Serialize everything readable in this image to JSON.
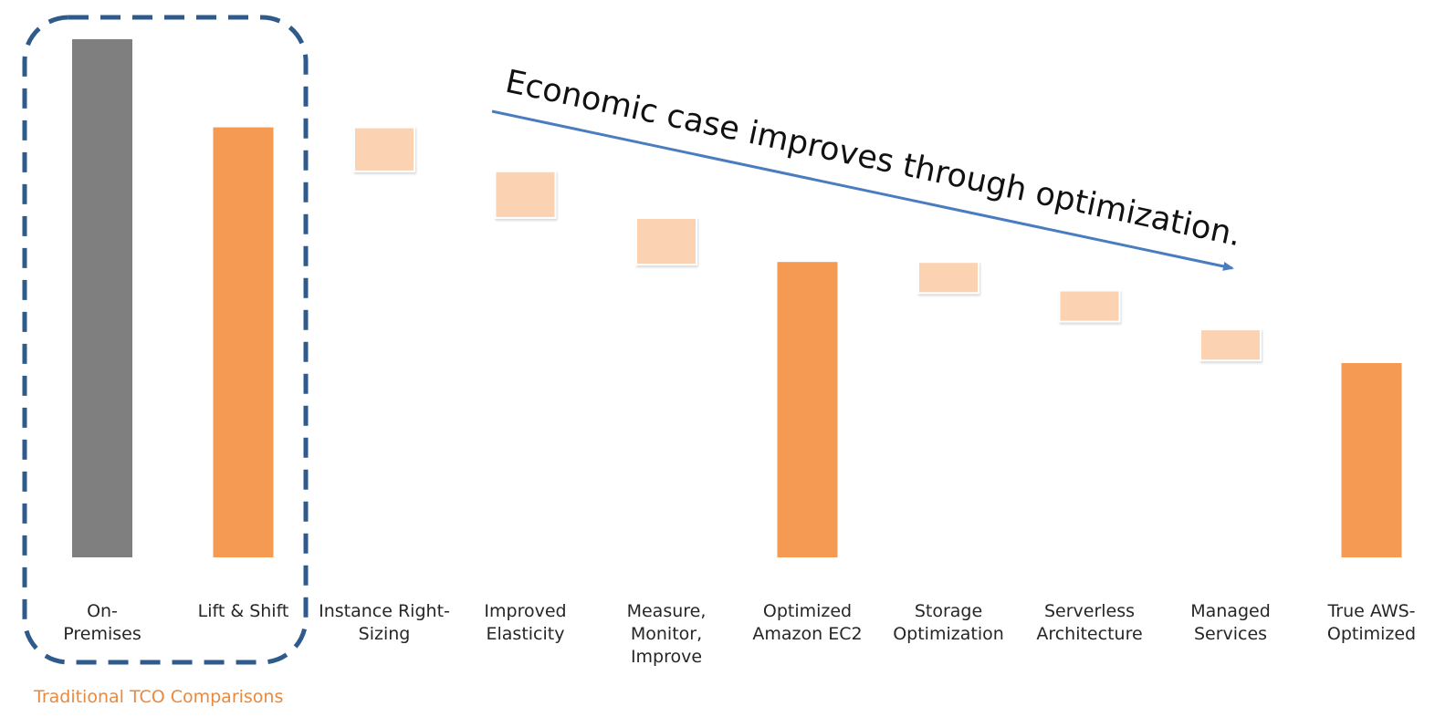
{
  "chart_data": {
    "type": "bar",
    "subtype": "waterfall",
    "categories": [
      [
        "On-",
        "Premises"
      ],
      [
        "Lift & Shift"
      ],
      [
        "Instance Right-",
        "Sizing"
      ],
      [
        "Improved",
        "Elasticity"
      ],
      [
        "Measure,",
        "Monitor,",
        "Improve"
      ],
      [
        "Optimized",
        "Amazon EC2"
      ],
      [
        "Storage",
        "Optimization"
      ],
      [
        "Serverless",
        "Architecture"
      ],
      [
        "Managed",
        "Services"
      ],
      [
        "True AWS-",
        "Optimized"
      ]
    ],
    "bars": [
      {
        "kind": "total",
        "low": 0,
        "high": 100,
        "color": "#7f7f7f"
      },
      {
        "kind": "total",
        "low": 0,
        "high": 83,
        "color": "#f59a52"
      },
      {
        "kind": "step",
        "low": 74.5,
        "high": 83,
        "color": "#fbd2b2"
      },
      {
        "kind": "step",
        "low": 65.5,
        "high": 74.5,
        "color": "#fbd2b2"
      },
      {
        "kind": "step",
        "low": 56.5,
        "high": 65.5,
        "color": "#fbd2b2"
      },
      {
        "kind": "total",
        "low": 0,
        "high": 57,
        "color": "#f59a52"
      },
      {
        "kind": "step",
        "low": 51,
        "high": 57,
        "color": "#fbd2b2"
      },
      {
        "kind": "step",
        "low": 45.5,
        "high": 51.5,
        "color": "#fbd2b2"
      },
      {
        "kind": "step",
        "low": 38,
        "high": 44,
        "color": "#fbd2b2"
      },
      {
        "kind": "total",
        "low": 0,
        "high": 37.5,
        "color": "#f59a52"
      }
    ],
    "ylim": [
      0,
      100
    ],
    "grid": false,
    "group": {
      "label": "Traditional TCO Comparisons",
      "member_indices": [
        0,
        1
      ],
      "border_color": "#2f5b8c",
      "label_color": "#e8893e"
    },
    "annotation": {
      "text": "Economic case improves through optimization.",
      "arrow_color": "#4a7cc0"
    }
  }
}
